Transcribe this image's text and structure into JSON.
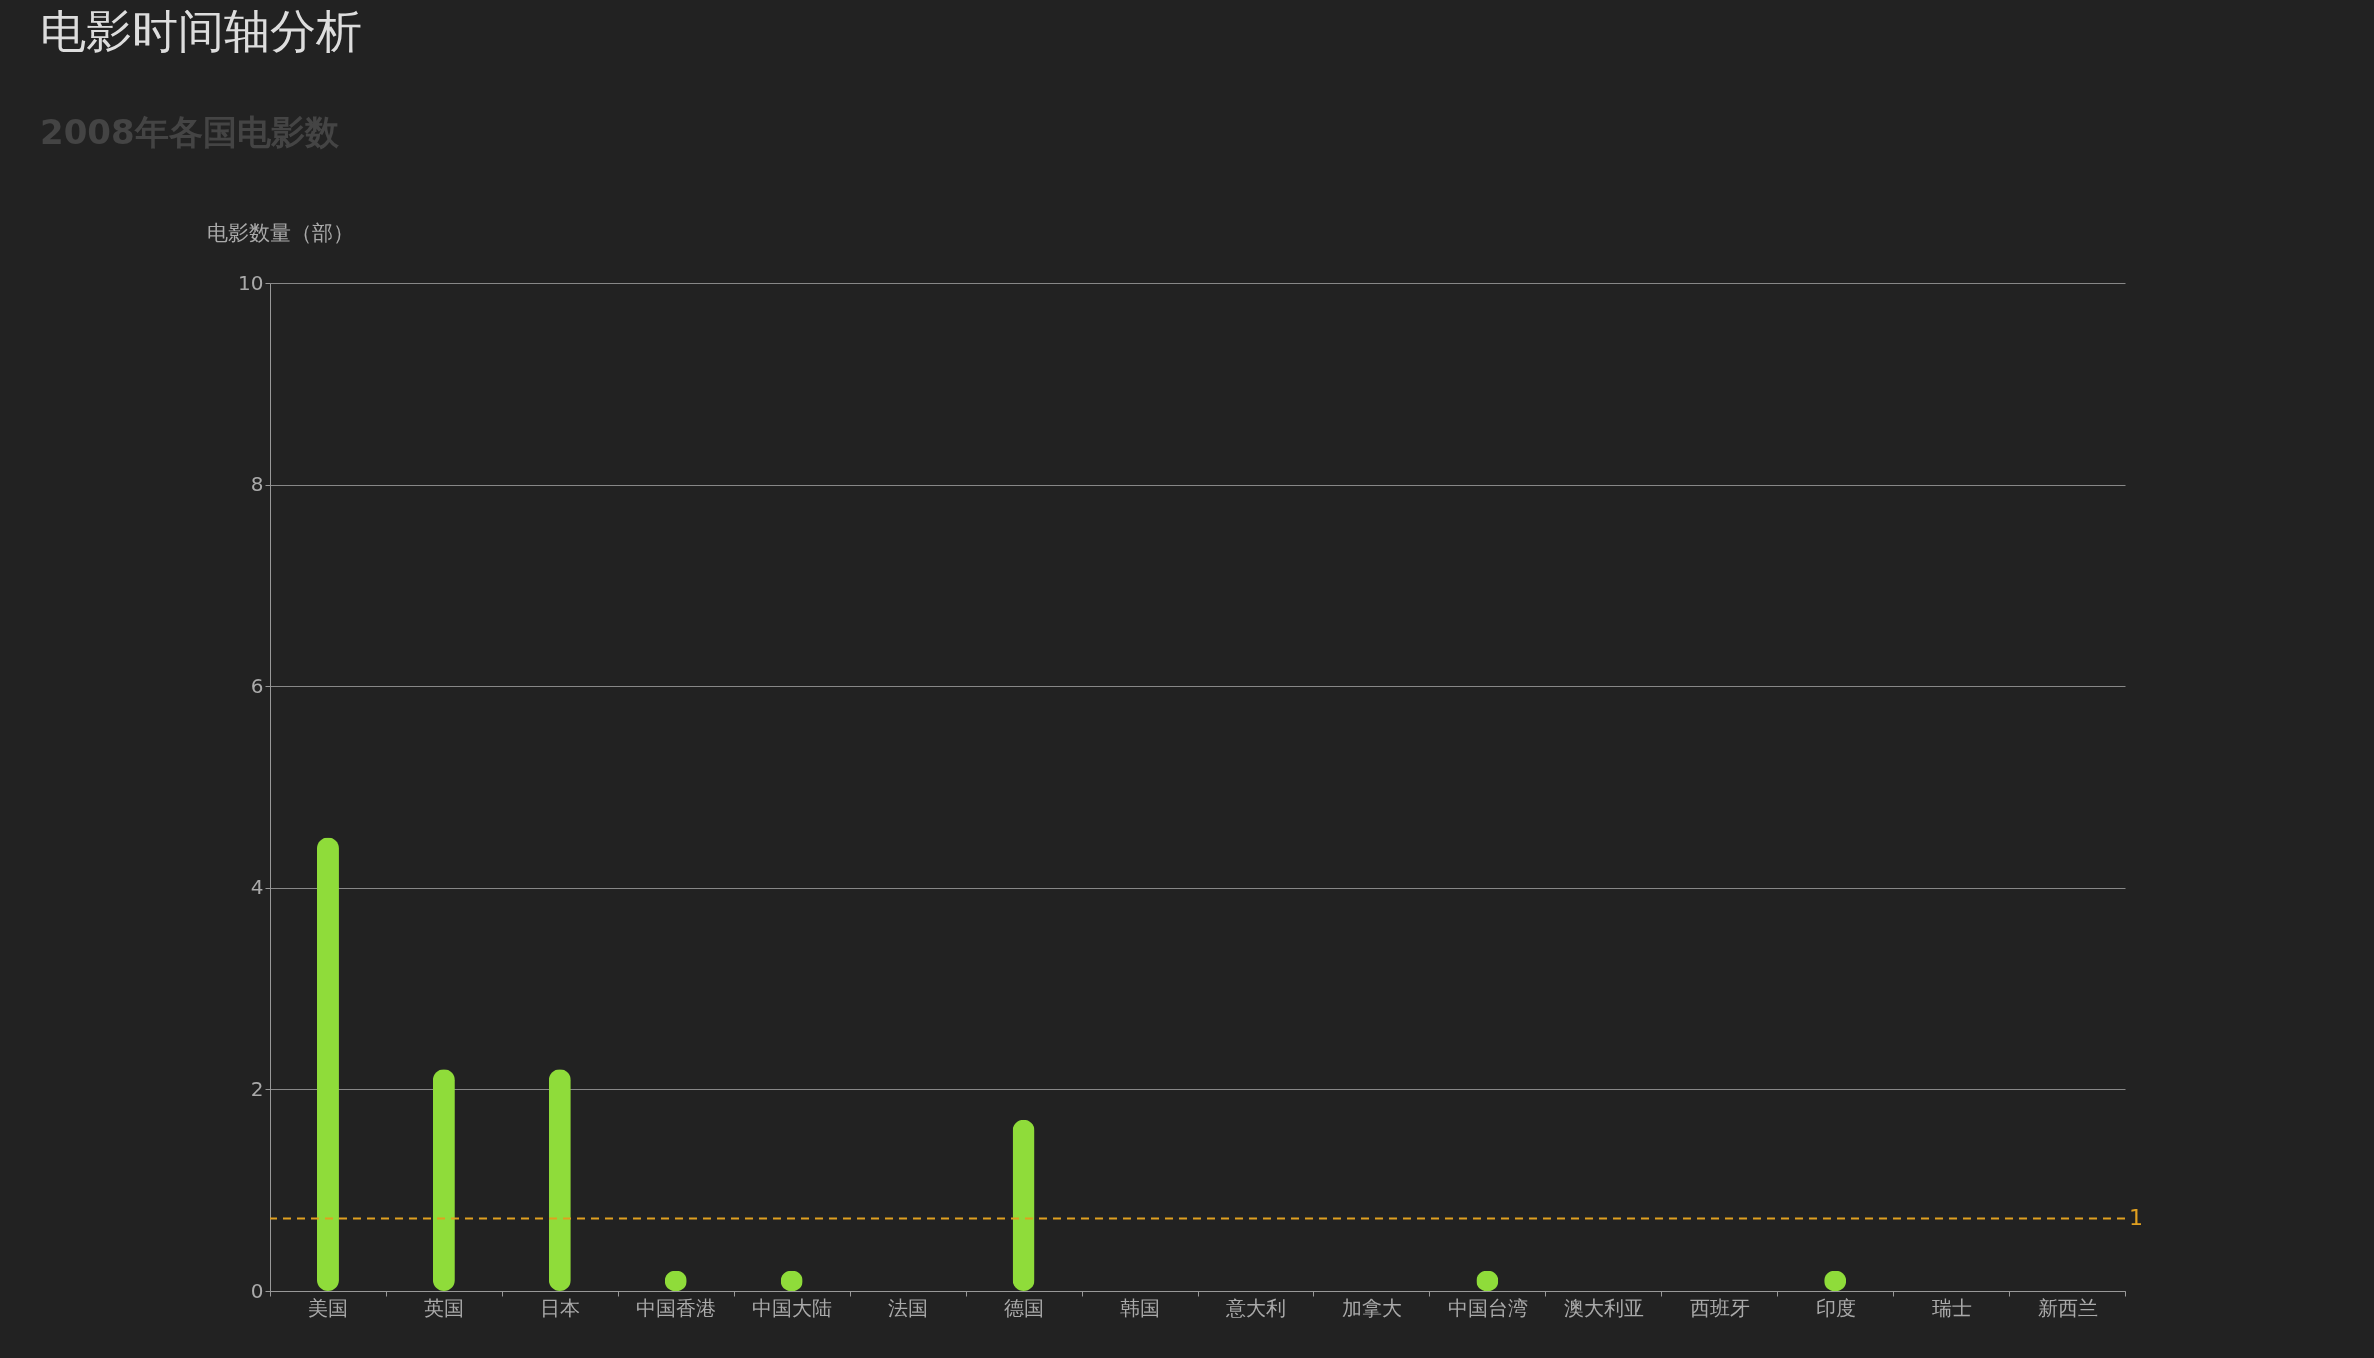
{
  "chart_data": {
    "type": "bar",
    "title": "电影时间轴分析",
    "subtitle": "2008年各国电影数",
    "ylabel": "电影数量（部）",
    "categories": [
      "美国",
      "英国",
      "日本",
      "中国香港",
      "中国大陆",
      "法国",
      "德国",
      "韩国",
      "意大利",
      "加拿大",
      "中国台湾",
      "澳大利亚",
      "西班牙",
      "印度",
      "瑞士",
      "新西兰"
    ],
    "values": [
      4.5,
      2.2,
      2.2,
      0.2,
      0.2,
      0,
      1.7,
      0,
      0,
      0,
      0.2,
      0,
      0,
      0.2,
      0,
      0
    ],
    "color": "#8fdc3a",
    "ylim": [
      0,
      10
    ],
    "yticks": [
      0,
      2,
      4,
      6,
      8,
      10
    ],
    "grid": "y",
    "ref_lines": [
      {
        "axis": "y",
        "value": 0.72,
        "label": "1",
        "color": "#e0a020",
        "line_style": "dashed"
      }
    ]
  }
}
